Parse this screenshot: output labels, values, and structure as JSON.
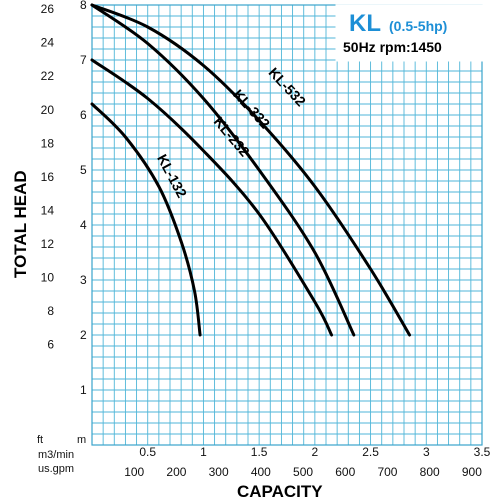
{
  "chart_data": {
    "type": "line",
    "title": "KL",
    "subtitle": "(0.5-5hp)",
    "info": "50Hz rpm:1450",
    "xlabel": "CAPACITY",
    "ylabel": "TOTAL HEAD",
    "x_unit_primary": "m3/min",
    "x_unit_secondary": "us.gpm",
    "y_unit_primary": "m",
    "y_unit_secondary": "ft",
    "xlim": [
      0,
      3.5
    ],
    "ylim": [
      0,
      8
    ],
    "grid": true,
    "x_ticks": [
      "0.5",
      "1",
      "1.5",
      "2",
      "2.5",
      "3",
      "3.5"
    ],
    "x_ticks_gpm": [
      "100",
      "200",
      "300",
      "400",
      "500",
      "600",
      "700",
      "800",
      "900"
    ],
    "y_ticks": [
      "1",
      "2",
      "3",
      "4",
      "5",
      "6",
      "7",
      "8"
    ],
    "y_ticks_ft": [
      "6",
      "8",
      "10",
      "12",
      "14",
      "16",
      "18",
      "20",
      "22",
      "24",
      "26"
    ],
    "series": [
      {
        "name": "KL-132",
        "x": [
          0,
          0.3,
          0.6,
          0.8,
          0.92,
          0.97
        ],
        "y": [
          6.2,
          5.6,
          4.7,
          3.7,
          2.8,
          2.0
        ]
      },
      {
        "name": "KL-232",
        "x": [
          0,
          0.5,
          1.0,
          1.5,
          2.0,
          2.15
        ],
        "y": [
          7.0,
          6.3,
          5.35,
          4.2,
          2.6,
          2.0
        ]
      },
      {
        "name": "KL-332",
        "x": [
          0,
          0.5,
          1.0,
          1.5,
          2.0,
          2.35
        ],
        "y": [
          8.0,
          7.3,
          6.3,
          5.0,
          3.5,
          2.0
        ]
      },
      {
        "name": "KL-532",
        "x": [
          0,
          0.5,
          1.0,
          1.5,
          2.0,
          2.5,
          2.85
        ],
        "y": [
          8.0,
          7.6,
          6.9,
          5.9,
          4.7,
          3.2,
          2.0
        ]
      }
    ]
  }
}
